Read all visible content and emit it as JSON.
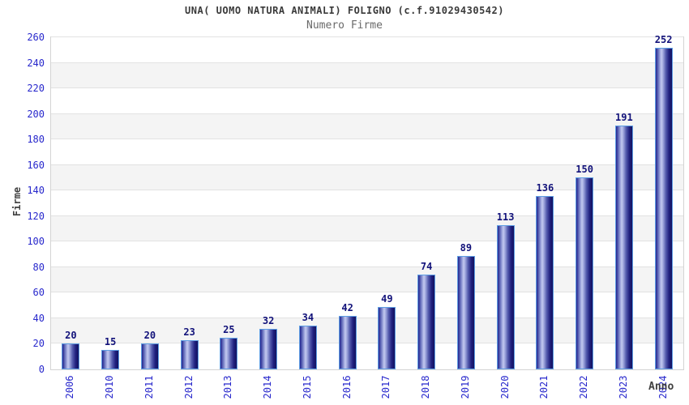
{
  "header": {
    "title": "UNA( UOMO NATURA ANIMALI) FOLIGNO (c.f.91029430542)",
    "subtitle": "Numero Firme"
  },
  "chart_data": {
    "type": "bar",
    "title": "UNA( UOMO NATURA ANIMALI) FOLIGNO (c.f.91029430542)",
    "subtitle": "Numero Firme",
    "xlabel": "Anno",
    "ylabel": "Firme",
    "categories": [
      "2006",
      "2010",
      "2011",
      "2012",
      "2013",
      "2014",
      "2015",
      "2016",
      "2017",
      "2018",
      "2019",
      "2020",
      "2021",
      "2022",
      "2023",
      "2024"
    ],
    "values": [
      20,
      15,
      20,
      23,
      25,
      32,
      34,
      42,
      49,
      74,
      89,
      113,
      136,
      150,
      191,
      252
    ],
    "ylim": [
      0,
      260
    ],
    "ytick_step": 20,
    "grid": true,
    "legend": false,
    "bands_alternating": true,
    "colors": {
      "bar_dark": "#1b1b74",
      "bar_light": "#c4caf0",
      "bar_border": "#5e9ee4",
      "tick_label": "#2828cc",
      "value_label": "#12127a",
      "band_gray": "#f4f4f4",
      "gridline": "#e2e2e2",
      "plot_border": "#d4d4d4",
      "title_color": "#3a3a3a",
      "subtitle_color": "#6a6a6a",
      "axis_label_color": "#404040"
    }
  }
}
